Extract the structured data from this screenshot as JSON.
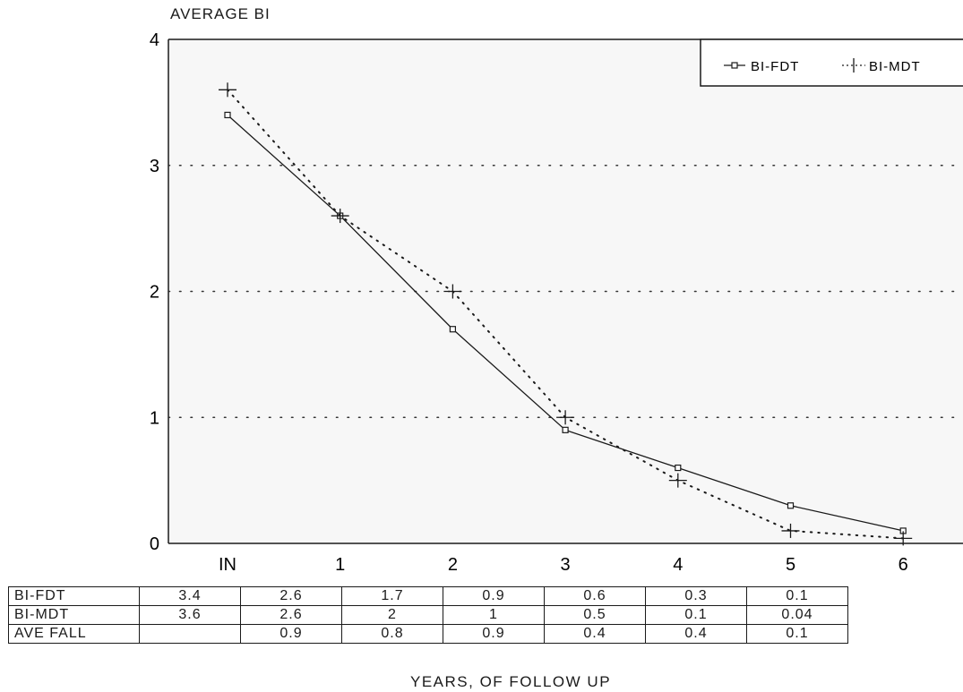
{
  "chart_data": {
    "type": "line",
    "ylabel": "AVERAGE BI",
    "xlabel": "YEARS, OF FOLLOW UP",
    "categories": [
      "IN",
      "1",
      "2",
      "3",
      "4",
      "5",
      "6"
    ],
    "yticks": [
      "0",
      "1",
      "2",
      "3",
      "4"
    ],
    "ylim": [
      0,
      4
    ],
    "grid": "horizontal dotted",
    "legend_position": "top-right",
    "series": [
      {
        "name": "BI-FDT",
        "values": [
          3.4,
          2.6,
          1.7,
          0.9,
          0.6,
          0.3,
          0.1
        ],
        "style": "solid",
        "marker": "square"
      },
      {
        "name": "BI-MDT",
        "values": [
          3.6,
          2.6,
          2,
          1,
          0.5,
          0.1,
          0.04
        ],
        "style": "dotted",
        "marker": "plus"
      }
    ]
  },
  "table": {
    "rows": [
      {
        "label": "BI-FDT",
        "cells": [
          "3.4",
          "2.6",
          "1.7",
          "0.9",
          "0.6",
          "0.3",
          "0.1"
        ]
      },
      {
        "label": "BI-MDT",
        "cells": [
          "3.6",
          "2.6",
          "2",
          "1",
          "0.5",
          "0.1",
          "0.04"
        ]
      },
      {
        "label": "AVE FALL",
        "cells": [
          "",
          "0.9",
          "0.8",
          "0.9",
          "0.4",
          "0.4",
          "0.1"
        ]
      }
    ]
  }
}
